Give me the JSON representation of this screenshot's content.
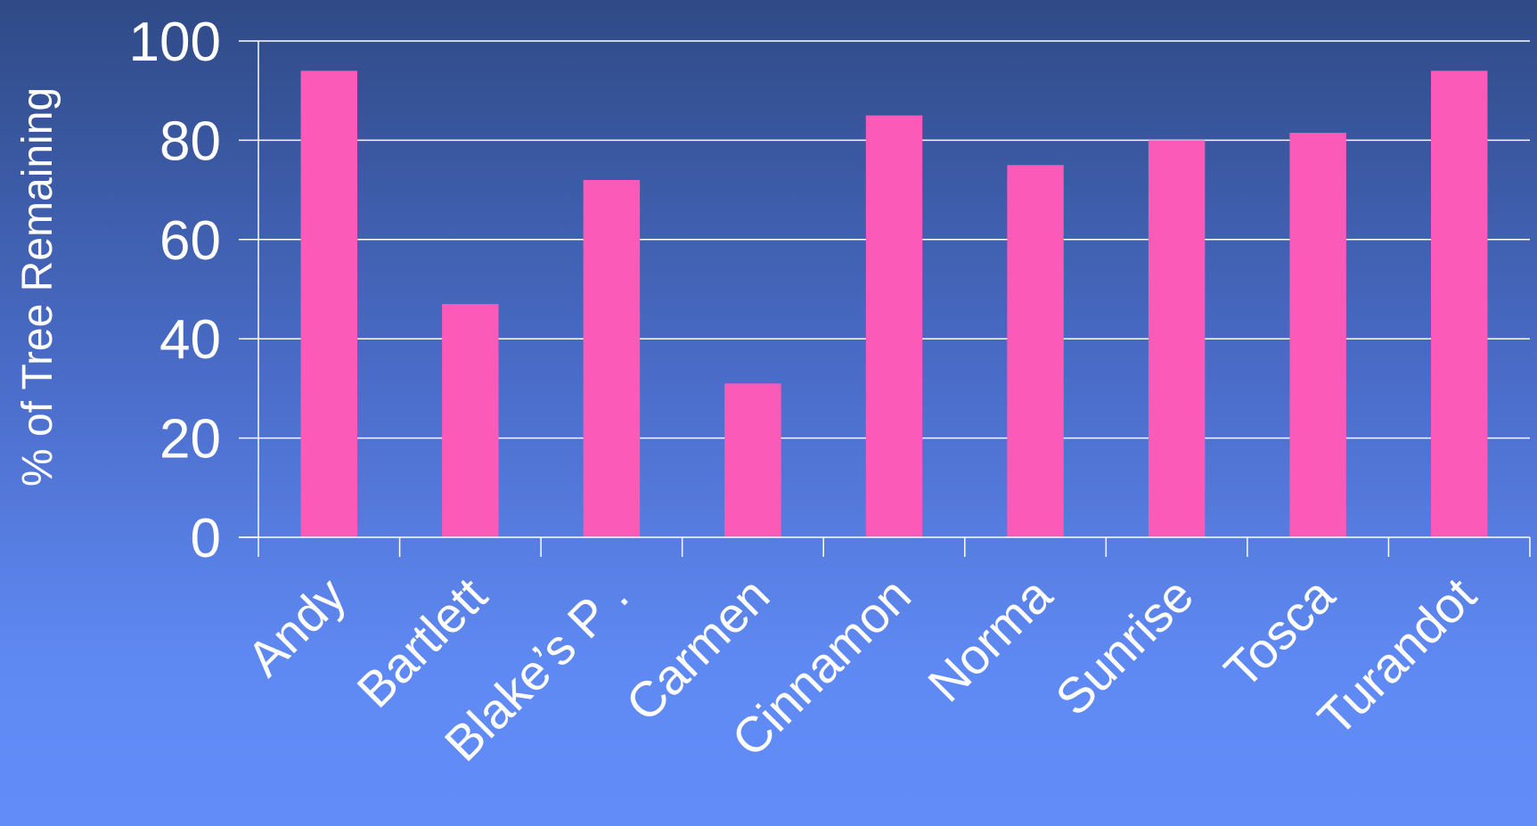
{
  "chart_data": {
    "type": "bar",
    "categories": [
      "Andy",
      "Bartlett",
      "Blake’s P .",
      "Carmen",
      "Cinnamon",
      "Norma",
      "Sunrise",
      "Tosca",
      "Turandot"
    ],
    "values": [
      94,
      47,
      72,
      31,
      85,
      75,
      80,
      81.5,
      94
    ],
    "ylabel": "% of Tree Remaining",
    "xlabel": "",
    "ylim": [
      0,
      100
    ],
    "yticks": [
      0,
      20,
      40,
      60,
      80,
      100
    ],
    "grid": true,
    "colors": {
      "bar": "#fb5ab9",
      "grid": "#ffffff",
      "axis": "#ffffff",
      "text": "#ffffff"
    }
  }
}
